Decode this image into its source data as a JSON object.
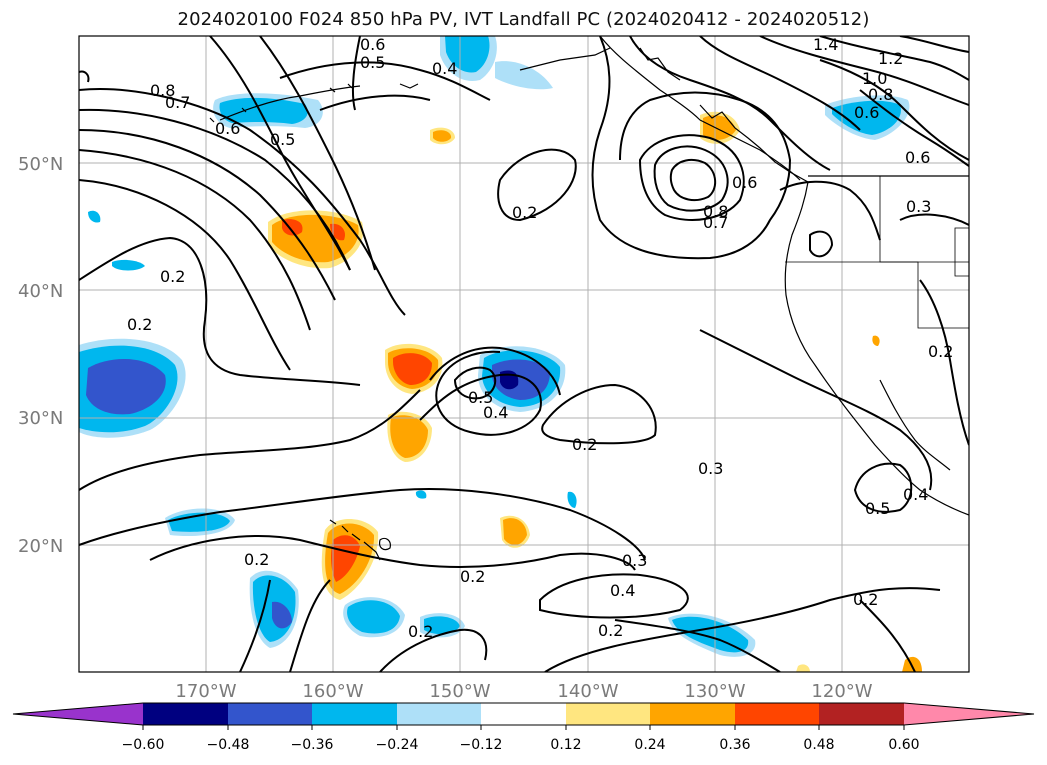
{
  "title": "2024020100 F024 850 hPa PV, IVT Landfall PC (2024020412 - 2024020512)",
  "lat_labels": [
    "50°N",
    "40°N",
    "30°N",
    "20°N"
  ],
  "lon_labels": [
    "170°W",
    "160°W",
    "150°W",
    "140°W",
    "130°W",
    "120°W"
  ],
  "contour_labels": [
    "0.8",
    "0.7",
    "0.6",
    "0.5",
    "0.6",
    "0.5",
    "0.4",
    "1.4",
    "1.2",
    "1.0",
    "0.8",
    "0.6",
    "0.6",
    "0.8",
    "0.7",
    "0.6",
    "0.3",
    "0.2",
    "0.2",
    "0.2",
    "0.5",
    "0.4",
    "0.2",
    "0.3",
    "0.3",
    "0.2",
    "0.4",
    "0.2",
    "0.2",
    "0.5",
    "0.4",
    "0.2",
    "0.2",
    "0.2"
  ],
  "colorbar": {
    "ticks": [
      "−0.60",
      "−0.48",
      "−0.36",
      "−0.24",
      "−0.12",
      "0.12",
      "0.24",
      "0.36",
      "0.48",
      "0.60"
    ],
    "colors": [
      "#9933cc",
      "#000080",
      "#3355cc",
      "#00b7ee",
      "#aee0f8",
      "#ffffff",
      "#ffe680",
      "#ffa500",
      "#ff4500",
      "#b22222",
      "#ff88aa"
    ]
  }
}
